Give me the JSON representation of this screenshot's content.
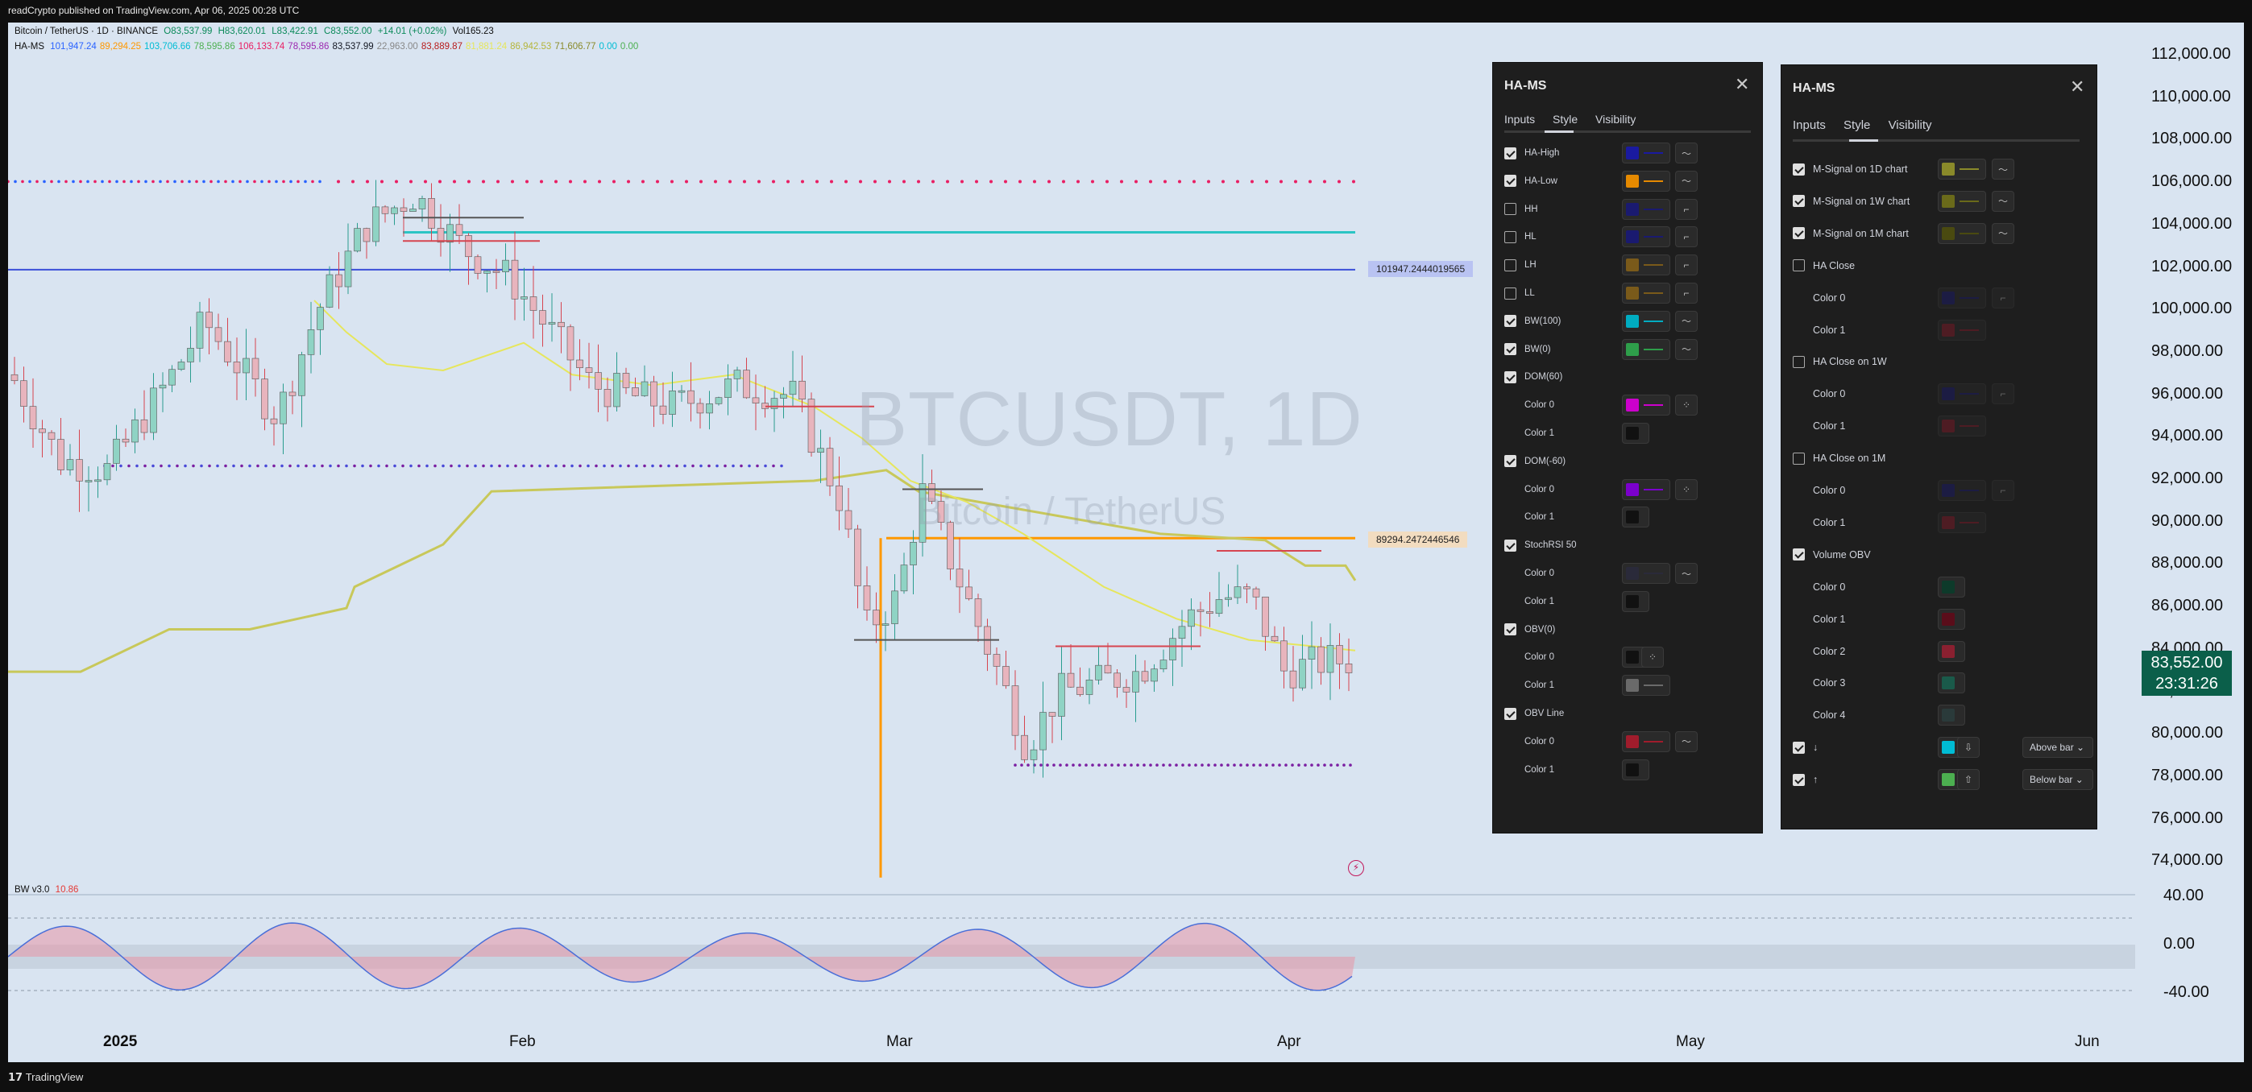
{
  "topbar": {
    "text": "readCrypto published on TradingView.com, Apr 06, 2025 00:28 UTC"
  },
  "legend": {
    "symbol": "Bitcoin / TetherUS · 1D · BINANCE",
    "o": "O83,537.99",
    "h": "H83,620.01",
    "l": "L83,422.91",
    "c": "C83,552.00",
    "change": "+14.01 (+0.02%)",
    "vol": "Vol165.23",
    "ha_name": "HA-MS",
    "ha_values": [
      {
        "v": "101,947.24",
        "color": "#2962ff"
      },
      {
        "v": "89,294.25",
        "color": "#ff9800"
      },
      {
        "v": "103,706.66",
        "color": "#00bcd4"
      },
      {
        "v": "78,595.86",
        "color": "#4caf50"
      },
      {
        "v": "106,133.74",
        "color": "#e91e63"
      },
      {
        "v": "78,595.86",
        "color": "#9c27b0"
      },
      {
        "v": "83,537.99",
        "color": "#131722"
      },
      {
        "v": "22,963.00",
        "color": "#888888"
      },
      {
        "v": "83,889.87",
        "color": "#b71c1c"
      },
      {
        "v": "81,881.24",
        "color": "#e6e65c"
      },
      {
        "v": "86,942.53",
        "color": "#b5b53a"
      },
      {
        "v": "71,606.77",
        "color": "#8a8a2a"
      },
      {
        "v": "0.00",
        "color": "#00bcd4"
      },
      {
        "v": "0.00",
        "color": "#4caf50"
      }
    ],
    "bw_name": "BW v3.0",
    "bw_value": "10.86"
  },
  "watermark": {
    "ticker": "BTCUSDT, 1D",
    "name": "Bitcoin / TetherUS"
  },
  "price_axis": [
    "112,000.00",
    "110,000.00",
    "108,000.00",
    "106,000.00",
    "104,000.00",
    "102,000.00",
    "100,000.00",
    "98,000.00",
    "96,000.00",
    "94,000.00",
    "92,000.00",
    "90,000.00",
    "88,000.00",
    "86,000.00",
    "84,000.00",
    "82,000.00",
    "80,000.00",
    "78,000.00",
    "76,000.00",
    "74,000.00"
  ],
  "osc_axis": [
    "40.00",
    "0.00",
    "-40.00"
  ],
  "time_axis": [
    "2025",
    "Feb",
    "Mar",
    "Apr",
    "May",
    "Jun"
  ],
  "current_price": {
    "price": "83,552.00",
    "countdown": "23:31:26"
  },
  "hline_labels": {
    "blue": "101947.2444019565",
    "orange": "89294.2472446546"
  },
  "panel_left": {
    "title": "HA-MS",
    "tabs": [
      "Inputs",
      "Style",
      "Visibility"
    ],
    "rows": [
      {
        "label": "HA-High",
        "checked": true,
        "color": "#1a1aa0",
        "line": "#1a1aa0",
        "icon": "wave-icon"
      },
      {
        "label": "HA-Low",
        "checked": true,
        "color": "#e68a00",
        "line": "#e68a00",
        "icon": "wave-icon"
      },
      {
        "label": "HH",
        "checked": false,
        "color": "#1a1a70",
        "line": "#1a1a70",
        "icon": "step-icon"
      },
      {
        "label": "HL",
        "checked": false,
        "color": "#1a1a70",
        "line": "#1a1a70",
        "icon": "step-icon"
      },
      {
        "label": "LH",
        "checked": false,
        "color": "#7a5a1a",
        "line": "#7a5a1a",
        "icon": "step-icon"
      },
      {
        "label": "LL",
        "checked": false,
        "color": "#7a5a1a",
        "line": "#7a5a1a",
        "icon": "step-icon"
      },
      {
        "label": "BW(100)",
        "checked": true,
        "color": "#00acc1",
        "line": "#00acc1",
        "icon": "wave-icon"
      },
      {
        "label": "BW(0)",
        "checked": true,
        "color": "#2e9e4a",
        "line": "#2e9e4a",
        "icon": "wave-icon"
      },
      {
        "label": "DOM(60)",
        "checked": true,
        "color": null,
        "line": null,
        "icon": null
      },
      {
        "label": "Color 0",
        "sub": true,
        "color": "#cc00cc",
        "line": "#cc00cc",
        "icon": "dots-icon"
      },
      {
        "label": "Color 1",
        "sub": true,
        "color": "#111111",
        "line": null,
        "icon": null
      },
      {
        "label": "DOM(-60)",
        "checked": true,
        "color": null,
        "line": null,
        "icon": null
      },
      {
        "label": "Color 0",
        "sub": true,
        "color": "#7b00cc",
        "line": "#7b00cc",
        "icon": "dots-icon"
      },
      {
        "label": "Color 1",
        "sub": true,
        "color": "#111111",
        "line": null,
        "icon": null
      },
      {
        "label": "StochRSI 50",
        "checked": true,
        "color": null,
        "line": null,
        "icon": null
      },
      {
        "label": "Color 0",
        "sub": true,
        "color": "#2a2a3a",
        "line": "#2a2a3a",
        "icon": "wave-icon"
      },
      {
        "label": "Color 1",
        "sub": true,
        "color": "#111111",
        "line": null,
        "icon": null
      },
      {
        "label": "OBV(0)",
        "checked": true,
        "color": null,
        "line": null,
        "icon": null
      },
      {
        "label": "Color 0",
        "sub": true,
        "color": "#111111",
        "line": null,
        "icon": "dots-icon"
      },
      {
        "label": "Color 1",
        "sub": true,
        "color": "#6a6a6a",
        "line": "#6a6a6a",
        "icon": null
      },
      {
        "label": "OBV Line",
        "checked": true,
        "color": null,
        "line": null,
        "icon": null
      },
      {
        "label": "Color 0",
        "sub": true,
        "color": "#a01c2c",
        "line": "#a01c2c",
        "icon": "wave-icon"
      },
      {
        "label": "Color 1",
        "sub": true,
        "color": "#111111",
        "line": null,
        "icon": null
      }
    ]
  },
  "panel_right": {
    "title": "HA-MS",
    "tabs": [
      "Inputs",
      "Style",
      "Visibility"
    ],
    "rows": [
      {
        "label": "M-Signal on 1D chart",
        "checked": true,
        "color": "#8a8a2a",
        "line": "#8a8a2a",
        "icon": "wave-icon"
      },
      {
        "label": "M-Signal on 1W chart",
        "checked": true,
        "color": "#6a6a1a",
        "line": "#6a6a1a",
        "icon": "wave-icon"
      },
      {
        "label": "M-Signal on 1M chart",
        "checked": true,
        "color": "#4a4a10",
        "line": "#4a4a10",
        "icon": "wave-icon"
      },
      {
        "label": "HA Close",
        "checked": false,
        "color": null,
        "line": null,
        "icon": null
      },
      {
        "label": "Color 0",
        "sub": true,
        "color": "#1a1a70",
        "line": "#1a1a70",
        "icon": "step-icon",
        "dim": true
      },
      {
        "label": "Color 1",
        "sub": true,
        "color": "#8a1a2a",
        "line": "#8a1a2a",
        "icon": null,
        "dim": true
      },
      {
        "label": "HA Close on 1W",
        "checked": false,
        "color": null,
        "line": null,
        "icon": null
      },
      {
        "label": "Color 0",
        "sub": true,
        "color": "#1a1a70",
        "line": "#1a1a70",
        "icon": "step-icon",
        "dim": true
      },
      {
        "label": "Color 1",
        "sub": true,
        "color": "#8a1a2a",
        "line": "#8a1a2a",
        "icon": null,
        "dim": true
      },
      {
        "label": "HA Close on 1M",
        "checked": false,
        "color": null,
        "line": null,
        "icon": null
      },
      {
        "label": "Color 0",
        "sub": true,
        "color": "#1a1a70",
        "line": "#1a1a70",
        "icon": "step-icon",
        "dim": true
      },
      {
        "label": "Color 1",
        "sub": true,
        "color": "#8a1a2a",
        "line": "#8a1a2a",
        "icon": null,
        "dim": true
      },
      {
        "label": "Volume OBV",
        "checked": true,
        "color": null,
        "line": null,
        "icon": null
      },
      {
        "label": "Color 0",
        "sub": true,
        "color": "#0d3a2a",
        "line": null,
        "icon": null
      },
      {
        "label": "Color 1",
        "sub": true,
        "color": "#5a0d1a",
        "line": null,
        "icon": null
      },
      {
        "label": "Color 2",
        "sub": true,
        "color": "#8a2030",
        "line": null,
        "icon": null
      },
      {
        "label": "Color 3",
        "sub": true,
        "color": "#1a5a4a",
        "line": null,
        "icon": null
      },
      {
        "label": "Color 4",
        "sub": true,
        "color": "#2a3a3a",
        "line": null,
        "icon": null
      },
      {
        "label": "↓",
        "checked": true,
        "color": "#00bcd4",
        "line": null,
        "icon": "arrow-down-icon",
        "dropdown": "Above bar"
      },
      {
        "label": "↑",
        "checked": true,
        "color": "#4caf50",
        "line": null,
        "icon": "arrow-up-icon",
        "dropdown": "Below bar"
      }
    ]
  },
  "footer": {
    "brand": "TradingView"
  },
  "colors": {
    "chart_bg": "#d9e4f1",
    "up": "#8fd3c4",
    "down": "#e8b4bd",
    "blue_line": "#3b4fd8",
    "cyan_line": "#2bc4c4",
    "orange_line": "#ff9800",
    "yellow_line": "#e6e65c",
    "olive_line": "#c8c85a",
    "magenta_dots": "#e91e63"
  }
}
